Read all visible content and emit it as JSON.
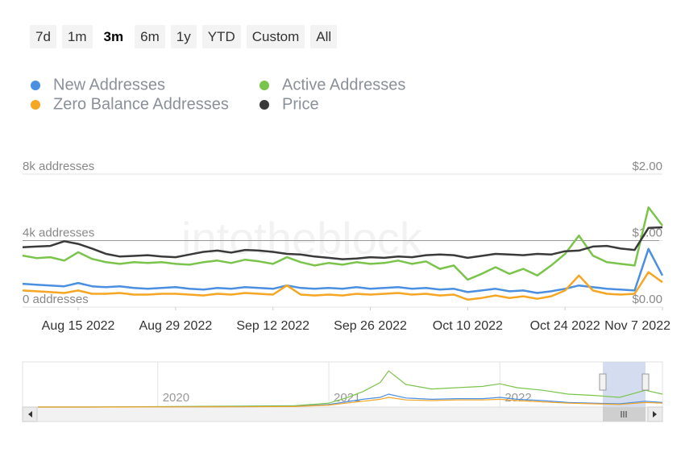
{
  "range_buttons": [
    "7d",
    "1m",
    "3m",
    "6m",
    "1y",
    "YTD",
    "Custom",
    "All"
  ],
  "selected_range": 2,
  "chart_data": {
    "type": "line",
    "watermark": "intotheblock",
    "legend": "top-left",
    "grid": true,
    "x": [
      "2022-08-07",
      "2022-08-09",
      "2022-08-11",
      "2022-08-13",
      "2022-08-15",
      "2022-08-17",
      "2022-08-19",
      "2022-08-21",
      "2022-08-23",
      "2022-08-25",
      "2022-08-27",
      "2022-08-29",
      "2022-08-31",
      "2022-09-02",
      "2022-09-04",
      "2022-09-06",
      "2022-09-08",
      "2022-09-10",
      "2022-09-12",
      "2022-09-14",
      "2022-09-16",
      "2022-09-18",
      "2022-09-20",
      "2022-09-22",
      "2022-09-24",
      "2022-09-26",
      "2022-09-28",
      "2022-09-30",
      "2022-10-02",
      "2022-10-04",
      "2022-10-06",
      "2022-10-08",
      "2022-10-10",
      "2022-10-12",
      "2022-10-14",
      "2022-10-16",
      "2022-10-18",
      "2022-10-20",
      "2022-10-22",
      "2022-10-24",
      "2022-10-26",
      "2022-10-28",
      "2022-10-30",
      "2022-11-01",
      "2022-11-03",
      "2022-11-05",
      "2022-11-07"
    ],
    "xlim": [
      "2022-08-07",
      "2022-11-07"
    ],
    "xticks": [
      {
        "value": "2022-08-15",
        "label": "Aug 15 2022"
      },
      {
        "value": "2022-08-29",
        "label": "Aug 29 2022"
      },
      {
        "value": "2022-09-12",
        "label": "Sep 12 2022"
      },
      {
        "value": "2022-09-26",
        "label": "Sep 26 2022"
      },
      {
        "value": "2022-10-10",
        "label": "Oct 10 2022"
      },
      {
        "value": "2022-10-24",
        "label": "Oct 24 2022"
      },
      {
        "value": "2022-11-07",
        "label": "Nov 7 2022"
      }
    ],
    "ylim": [
      0,
      8000
    ],
    "yticks": [
      {
        "value": 0,
        "label": "0 addresses"
      },
      {
        "value": 4000,
        "label": "4k addresses"
      },
      {
        "value": 8000,
        "label": "8k addresses"
      }
    ],
    "y2lim": [
      0,
      2
    ],
    "y2ticks": [
      {
        "value": 0,
        "label": "$0.00"
      },
      {
        "value": 1,
        "label": "$1.00"
      },
      {
        "value": 2,
        "label": "$2.00"
      }
    ],
    "series": [
      {
        "name": "New Addresses",
        "color": "#4a8fe0",
        "values": [
          1400,
          1350,
          1300,
          1250,
          1450,
          1250,
          1200,
          1250,
          1150,
          1100,
          1150,
          1200,
          1100,
          1050,
          1150,
          1100,
          1200,
          1150,
          1100,
          1300,
          1150,
          1100,
          1150,
          1100,
          1200,
          1100,
          1150,
          1200,
          1100,
          1150,
          1050,
          1100,
          900,
          1000,
          1100,
          950,
          1000,
          850,
          950,
          1100,
          1300,
          1200,
          1100,
          1050,
          1000,
          3500,
          1900
        ]
      },
      {
        "name": "Active Addresses",
        "color": "#7bc44c",
        "values": [
          3100,
          2950,
          3000,
          2800,
          3300,
          2900,
          2700,
          2600,
          2700,
          2650,
          2700,
          2600,
          2550,
          2700,
          2800,
          2650,
          2850,
          2750,
          2600,
          3000,
          2700,
          2500,
          2650,
          2550,
          2700,
          2600,
          2650,
          2800,
          2600,
          2750,
          2300,
          2500,
          1650,
          2000,
          2400,
          2000,
          2300,
          1900,
          2500,
          3200,
          4300,
          3100,
          2700,
          2600,
          2500,
          6000,
          4900
        ]
      },
      {
        "name": "Zero Balance Addresses",
        "color": "#f5a623",
        "values": [
          1000,
          950,
          900,
          850,
          1000,
          800,
          800,
          850,
          750,
          750,
          800,
          800,
          750,
          700,
          800,
          750,
          850,
          800,
          750,
          1300,
          750,
          700,
          750,
          700,
          800,
          750,
          800,
          850,
          750,
          800,
          700,
          750,
          450,
          550,
          700,
          550,
          650,
          500,
          650,
          1000,
          1900,
          1000,
          800,
          750,
          800,
          2100,
          1500
        ]
      },
      {
        "name": "Price",
        "color": "#3a3a3a",
        "axis": "y2",
        "values": [
          0.9,
          0.91,
          0.92,
          0.99,
          0.95,
          0.88,
          0.8,
          0.76,
          0.77,
          0.78,
          0.76,
          0.75,
          0.79,
          0.83,
          0.85,
          0.82,
          0.86,
          0.85,
          0.83,
          0.8,
          0.79,
          0.76,
          0.74,
          0.72,
          0.73,
          0.75,
          0.74,
          0.76,
          0.75,
          0.78,
          0.79,
          0.78,
          0.74,
          0.77,
          0.8,
          0.79,
          0.78,
          0.8,
          0.79,
          0.84,
          0.85,
          0.91,
          0.92,
          0.88,
          0.86,
          1.19,
          1.2
        ]
      }
    ],
    "navigator": {
      "x": [
        2019.3,
        2019.6,
        2019.9,
        2020.2,
        2020.5,
        2020.8,
        2021.0,
        2021.1,
        2021.2,
        2021.3,
        2021.35,
        2021.45,
        2021.6,
        2021.75,
        2021.9,
        2022.0,
        2022.1,
        2022.25,
        2022.4,
        2022.55,
        2022.7,
        2022.85,
        2022.95
      ],
      "xlim": [
        2019.21,
        2022.95
      ],
      "xticks": [
        2020,
        2021,
        2022
      ],
      "ylim": [
        0,
        7000
      ],
      "series": [
        {
          "color": "#7bc44c",
          "values": [
            0,
            0,
            50,
            100,
            150,
            200,
            600,
            1400,
            2400,
            3800,
            5600,
            3500,
            2800,
            3000,
            3200,
            3600,
            3000,
            2600,
            2000,
            1800,
            1500,
            2600,
            2000
          ]
        },
        {
          "color": "#4a8fe0",
          "values": [
            0,
            0,
            20,
            40,
            60,
            100,
            400,
            800,
            1200,
            1500,
            2000,
            1400,
            1200,
            1300,
            1300,
            1500,
            1200,
            1000,
            700,
            600,
            500,
            900,
            700
          ]
        },
        {
          "color": "#f5a623",
          "values": [
            0,
            0,
            10,
            20,
            40,
            80,
            300,
            600,
            900,
            1200,
            1500,
            1100,
            1000,
            1100,
            1100,
            1200,
            1000,
            800,
            600,
            500,
            400,
            700,
            600
          ]
        }
      ]
    }
  }
}
